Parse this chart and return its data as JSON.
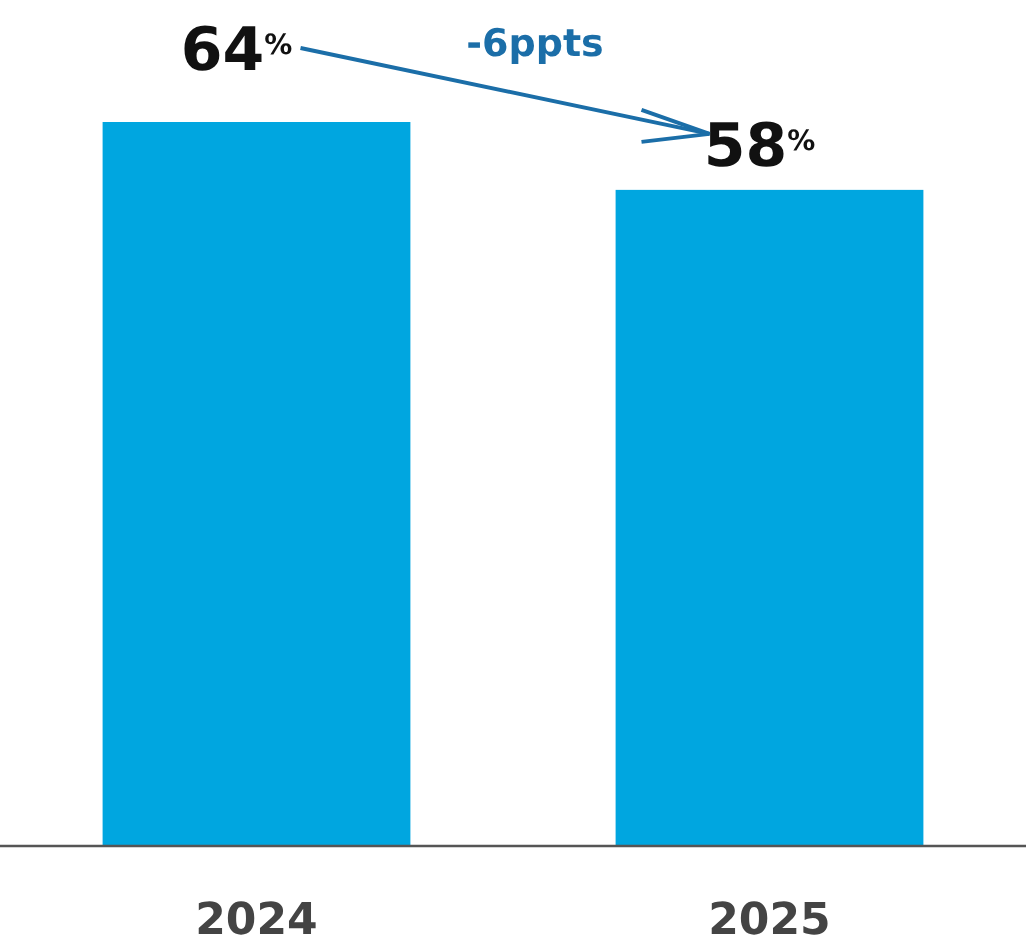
{
  "chart_data": {
    "type": "bar",
    "categories": [
      "2024",
      "2025"
    ],
    "values": [
      64,
      58
    ],
    "color": "#00a6e0",
    "value_labels": [
      "64$^{%}$",
      "58$^{%}$"
    ],
    "annotations": [
      "-6ppts"
    ]
  }
}
